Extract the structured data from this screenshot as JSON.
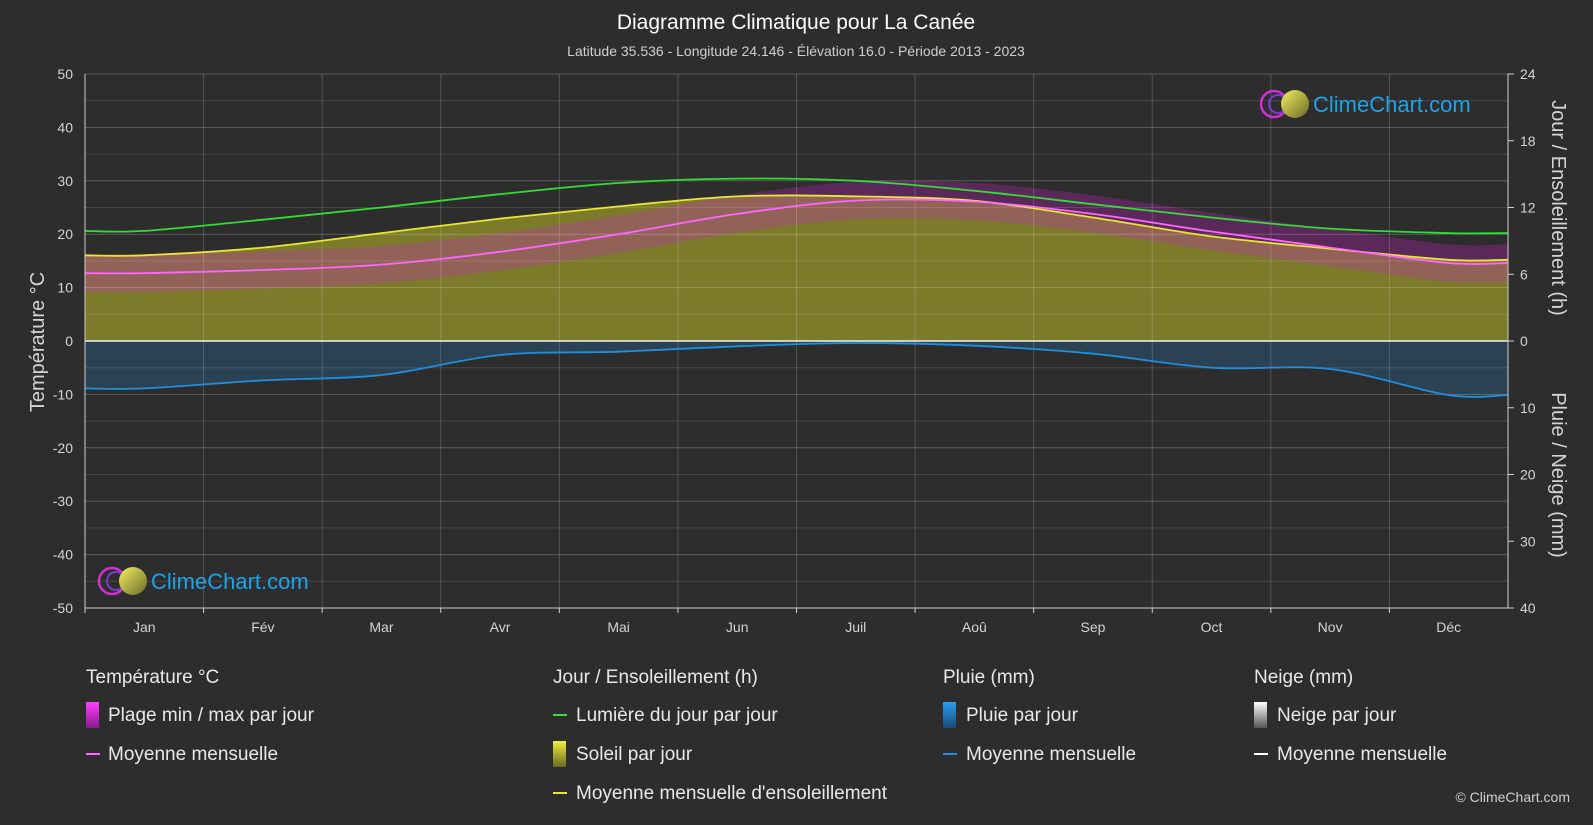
{
  "title": "Diagramme Climatique pour La Canée",
  "subtitle": "Latitude 35.536 - Longitude 24.146 - Élévation 16.0 - Période 2013 - 2023",
  "logo_text": "ClimeChart.com",
  "copyright": "© ClimeChart.com",
  "colors": {
    "background": "#2d2d2d",
    "daylight": "#33dd33",
    "sunshine_mean": "#e8e832",
    "sunshine_fill": "#8a8a2a",
    "temp_mean": "#ff66ff",
    "temp_range": "#d020d0",
    "rain": "#1f8fdd",
    "snow": "#ffffff"
  },
  "legend": {
    "groups": [
      {
        "heading": "Température °C",
        "items": [
          {
            "label": "Plage min / max par jour",
            "swatch": "temp-range"
          },
          {
            "label": "Moyenne mensuelle",
            "swatch": "temp-mean"
          }
        ]
      },
      {
        "heading": "Jour / Ensoleillement (h)",
        "items": [
          {
            "label": "Lumière du jour par jour",
            "swatch": "daylight"
          },
          {
            "label": "Soleil par jour",
            "swatch": "sunshine"
          },
          {
            "label": "Moyenne mensuelle d'ensoleillement",
            "swatch": "sunshine-mean"
          }
        ]
      },
      {
        "heading": "Pluie (mm)",
        "items": [
          {
            "label": "Pluie par jour",
            "swatch": "rain"
          },
          {
            "label": "Moyenne mensuelle",
            "swatch": "rain-mean"
          }
        ]
      },
      {
        "heading": "Neige (mm)",
        "items": [
          {
            "label": "Neige par jour",
            "swatch": "snow"
          },
          {
            "label": "Moyenne mensuelle",
            "swatch": "snow-mean"
          }
        ]
      }
    ]
  },
  "chart_data": {
    "type": "line",
    "months": [
      "Jan",
      "Fév",
      "Mar",
      "Avr",
      "Mai",
      "Jun",
      "Juil",
      "Aoû",
      "Sep",
      "Oct",
      "Nov",
      "Déc"
    ],
    "left_axis": {
      "title": "Température °C",
      "range": [
        -50,
        50
      ],
      "ticks": [
        50,
        40,
        30,
        20,
        10,
        0,
        -10,
        -20,
        -30,
        -40,
        -50
      ]
    },
    "right_axis_top": {
      "title": "Jour / Ensoleillement (h)",
      "range": [
        0,
        24
      ],
      "ticks": [
        24,
        18,
        12,
        6,
        0
      ]
    },
    "right_axis_bottom": {
      "title": "Pluie / Neige (mm)",
      "range": [
        0,
        40
      ],
      "ticks": [
        0,
        10,
        20,
        30,
        40
      ]
    },
    "grid": true,
    "series": [
      {
        "name": "Lumière du jour par jour",
        "unit": "h",
        "values": [
          9.9,
          10.9,
          12.0,
          13.2,
          14.2,
          14.6,
          14.4,
          13.5,
          12.3,
          11.1,
          10.1,
          9.7
        ]
      },
      {
        "name": "Moyenne mensuelle d'ensoleillement",
        "unit": "h",
        "values": [
          7.7,
          8.4,
          9.7,
          11.0,
          12.1,
          13.0,
          13.0,
          12.6,
          11.1,
          9.4,
          8.3,
          7.3
        ]
      },
      {
        "name": "Moyenne mensuelle",
        "group": "Température °C",
        "unit": "°C",
        "values": [
          12.7,
          13.3,
          14.3,
          16.7,
          20.0,
          23.8,
          26.3,
          26.1,
          23.8,
          20.5,
          17.5,
          14.6
        ]
      },
      {
        "name": "Moyenne mensuelle",
        "group": "Pluie (mm)",
        "unit": "mm",
        "values": [
          7.1,
          5.9,
          5.1,
          2.1,
          1.6,
          0.8,
          0.3,
          0.7,
          1.9,
          4.0,
          4.2,
          8.1
        ]
      },
      {
        "name": "Moyenne mensuelle",
        "group": "Neige (mm)",
        "unit": "mm",
        "values": [
          0,
          0,
          0,
          0,
          0,
          0,
          0,
          0,
          0,
          0,
          0,
          0
        ]
      }
    ]
  }
}
